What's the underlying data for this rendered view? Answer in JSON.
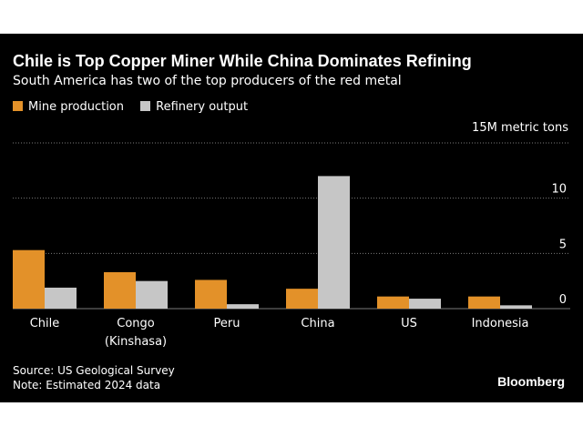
{
  "chart_data": {
    "type": "bar",
    "title": "Chile is Top Copper Miner While China Dominates Refining",
    "subtitle": "South America has two of the top producers of the red metal",
    "unit_label": "15M metric tons",
    "categories": [
      "Chile",
      "Congo\n(Kinshasa)",
      "Peru",
      "China",
      "US",
      "Indonesia"
    ],
    "series": [
      {
        "name": "Mine production",
        "color": "#e39129",
        "values": [
          5.3,
          3.3,
          2.6,
          1.8,
          1.1,
          1.1
        ]
      },
      {
        "name": "Refinery output",
        "color": "#c6c6c6",
        "values": [
          1.9,
          2.5,
          0.4,
          12.0,
          0.9,
          0.3
        ]
      }
    ],
    "ylim": [
      0,
      15
    ],
    "yticks": [
      0,
      5,
      10
    ],
    "grid": true,
    "legend_position": "top-left",
    "gridline_color": "#7a7a7a"
  },
  "footer": {
    "source": "Source: US Geological Survey",
    "note": "Note: Estimated 2024 data"
  },
  "brand": "Bloomberg"
}
